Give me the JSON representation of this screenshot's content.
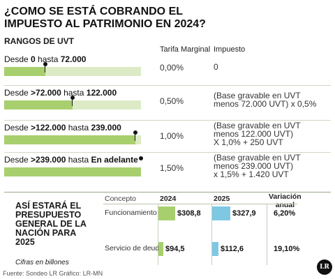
{
  "title": "¿COMO SE ESTÁ COBRANDO EL IMPUESTO AL PATRIMONIO EN 2024?",
  "tax_table": {
    "section_title": "RANGOS DE UVT",
    "col_rate": "Tarifa Marginal",
    "col_tax": "Impuesto",
    "rows": [
      {
        "pre": "Desde ",
        "from": "0",
        "mid": " hasta ",
        "to": "72.000",
        "rate": "0,00%",
        "tax": [
          "0"
        ],
        "fill": 0.3
      },
      {
        "pre": "Desde ",
        "from": ">72.000",
        "mid": " hasta ",
        "to": "122.000",
        "rate": "0,50%",
        "tax": [
          "(Base gravable en UVT",
          "menos 72.000 UVT) x 0,5%"
        ],
        "fill": 0.5
      },
      {
        "pre": "Desde ",
        "from": ">122.000",
        "mid": " hasta ",
        "to": "239.000",
        "rate": "1,00%",
        "tax": [
          "(Base gravable en UVT",
          "menos 122.000 UVT)",
          "X 1,0% + 250 UVT"
        ],
        "fill": 0.96
      },
      {
        "pre": "Desde ",
        "from": ">239.000",
        "mid": " hasta ",
        "to": "En adelante",
        "rate": "1,50%",
        "tax": [
          "(Base gravable en UVT",
          "menos 239.000 UVT)",
          "x 1,5% + 1.420 UVT"
        ],
        "fill": 1.0
      }
    ]
  },
  "budget": {
    "title": "ASÍ ESTARÁ EL PRESUPUESTO GENERAL DE LA NACIÓN PARA 2025",
    "subtitle": "Cifras en billones",
    "col_concept": "Concepto",
    "col_2024": "2024",
    "col_2025": "2025",
    "col_var_line1": "Variación",
    "col_var_line2": "anual"
  },
  "chart_data": {
    "type": "bar",
    "categories": [
      "Funcionamiento",
      "Servicio de deuda"
    ],
    "series": [
      {
        "name": "2024",
        "values": [
          308.8,
          94.5
        ],
        "labels": [
          "$308,8",
          "$94,5"
        ],
        "color": "#a8cf6e"
      },
      {
        "name": "2025",
        "values": [
          327.9,
          112.6
        ],
        "labels": [
          "$327,9",
          "$112,6"
        ],
        "color": "#7ec8e3"
      }
    ],
    "variation": [
      "6,20%",
      "19,10%"
    ],
    "ylim": [
      0,
      330
    ]
  },
  "source": "Fuente: Sondeo LR  Gráfico: LR-MN",
  "logo": "LR"
}
